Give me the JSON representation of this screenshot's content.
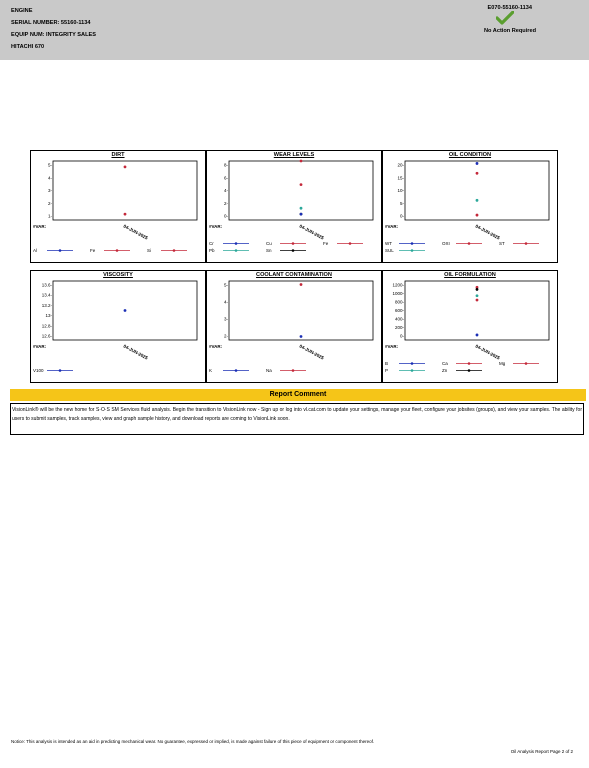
{
  "header": {
    "lines": [
      "ENGINE",
      "SERIAL NUMBER: 55160-1134",
      "EQUIP NUM: INTEGRITY SALES",
      "HITACHI 670"
    ],
    "report_id": "E070-55160-1134",
    "status": "No Action Required",
    "status_color": "#5a9e2f"
  },
  "panels": [
    {
      "title": "DIRT",
      "y_ticks": [
        "5-",
        "4-",
        "3-",
        "2-",
        "1-"
      ],
      "x_label": "04-JUN-2025",
      "var_label": "#VAR:",
      "legend": [
        {
          "label": "Al",
          "color": "#1b2fb5"
        },
        {
          "label": "Fe",
          "color": "#c4283a"
        },
        {
          "label": "Si",
          "color": "#c4283a"
        }
      ],
      "chart_data": {
        "type": "scatter",
        "x": [
          "04-JUN-2025"
        ],
        "ylim": [
          0.5,
          5.5
        ],
        "series": [
          {
            "name": "Fe",
            "values": [
              5
            ]
          },
          {
            "name": "Si",
            "values": [
              1
            ]
          }
        ]
      }
    },
    {
      "title": "WEAR LEVELS",
      "y_ticks": [
        "8-",
        "6-",
        "4-",
        "2-",
        "0-"
      ],
      "x_label": "04-JUN-2025",
      "var_label": "#VAR:",
      "legend": [
        {
          "label": "Cr",
          "color": "#1b2fb5"
        },
        {
          "label": "Cu",
          "color": "#c4283a"
        },
        {
          "label": "Fe",
          "color": "#c4283a"
        },
        {
          "label": "Pb",
          "color": "#2ba89a"
        },
        {
          "label": "Sn",
          "color": "#000000"
        }
      ],
      "chart_data": {
        "type": "scatter",
        "x": [
          "04-JUN-2025"
        ],
        "ylim": [
          -1,
          9
        ],
        "series": [
          {
            "name": "Fe",
            "values": [
              9
            ]
          },
          {
            "name": "Cu",
            "values": [
              5
            ]
          },
          {
            "name": "Pb",
            "values": [
              1
            ]
          },
          {
            "name": "Sn",
            "values": [
              0
            ]
          },
          {
            "name": "Cr",
            "values": [
              0
            ]
          }
        ]
      }
    },
    {
      "title": "OIL CONDITION",
      "y_ticks": [
        "20-",
        "15-",
        "10-",
        "5-",
        "0-"
      ],
      "x_label": "04-JUN-2025",
      "var_label": "#VAR:",
      "legend": [
        {
          "label": "WT",
          "color": "#1b2fb5"
        },
        {
          "label": "OXI",
          "color": "#c4283a"
        },
        {
          "label": "ST",
          "color": "#c4283a"
        },
        {
          "label": "SUL",
          "color": "#2ba89a"
        }
      ],
      "chart_data": {
        "type": "scatter",
        "x": [
          "04-JUN-2025"
        ],
        "ylim": [
          -2,
          22
        ],
        "series": [
          {
            "name": "WT",
            "values": [
              21
            ]
          },
          {
            "name": "OXI",
            "values": [
              17
            ]
          },
          {
            "name": "SUL",
            "values": [
              6
            ]
          },
          {
            "name": "ST",
            "values": [
              0
            ]
          }
        ]
      }
    },
    {
      "title": "VISCOSITY",
      "y_ticks": [
        "13.6-",
        "13.4-",
        "13.2-",
        "13-",
        "12.8-",
        "12.6-"
      ],
      "x_label": "04-JUN-2025",
      "var_label": "#VAR:",
      "legend": [
        {
          "label": "V100",
          "color": "#1b2fb5"
        }
      ],
      "chart_data": {
        "type": "scatter",
        "x": [
          "04-JUN-2025"
        ],
        "ylim": [
          12.55,
          13.65
        ],
        "series": [
          {
            "name": "V100",
            "values": [
              13.1
            ]
          }
        ]
      }
    },
    {
      "title": "COOLANT CONTAMINATION",
      "y_ticks": [
        "5-",
        "4-",
        "3-",
        "2-"
      ],
      "x_label": "04-JUN-2025",
      "var_label": "#VAR:",
      "legend": [
        {
          "label": "K",
          "color": "#1b2fb5"
        },
        {
          "label": "Na",
          "color": "#c4283a"
        }
      ],
      "chart_data": {
        "type": "scatter",
        "x": [
          "04-JUN-2025"
        ],
        "ylim": [
          1.8,
          5.2
        ],
        "series": [
          {
            "name": "Na",
            "values": [
              5
            ]
          },
          {
            "name": "K",
            "values": [
              2
            ]
          }
        ]
      }
    },
    {
      "title": "OIL FORMULATION",
      "y_ticks": [
        "1200-",
        "1000-",
        "800-",
        "600-",
        "400-",
        "200-",
        "0-"
      ],
      "x_label": "04-JUN-2025",
      "var_label": "#VAR:",
      "legend": [
        {
          "label": "B",
          "color": "#1b2fb5"
        },
        {
          "label": "Ca",
          "color": "#c4283a"
        },
        {
          "label": "Mg",
          "color": "#c4283a"
        },
        {
          "label": "P",
          "color": "#2ba89a"
        },
        {
          "label": "Zn",
          "color": "#000000"
        }
      ],
      "chart_data": {
        "type": "scatter",
        "x": [
          "04-JUN-2025"
        ],
        "ylim": [
          -100,
          1300
        ],
        "series": [
          {
            "name": "Ca",
            "values": [
              1150
            ]
          },
          {
            "name": "Zn",
            "values": [
              1100
            ]
          },
          {
            "name": "P",
            "values": [
              950
            ]
          },
          {
            "name": "Mg",
            "values": [
              850
            ]
          },
          {
            "name": "B",
            "values": [
              20
            ]
          }
        ]
      }
    }
  ],
  "comment": {
    "title": "Report Comment",
    "text": "VisionLink® will be the new home for S·O·S SM Services fluid analysis. Begin the transition to VisionLink now - Sign up or log into vl.cat.com to update your settings, manage your fleet, configure your jobsites (groups), and view your samples. The ability for users to submit samples, track samples, view and graph sample history, and download reports are coming to VisionLink soon."
  },
  "notice": "Notice: This analysis is intended as an aid in predicting mechanical wear. No guarantee, expressed or implied, is made against failure of this piece of equipment or component thereof.",
  "footer": "Oil Analysis Report   Page 2 of 2"
}
